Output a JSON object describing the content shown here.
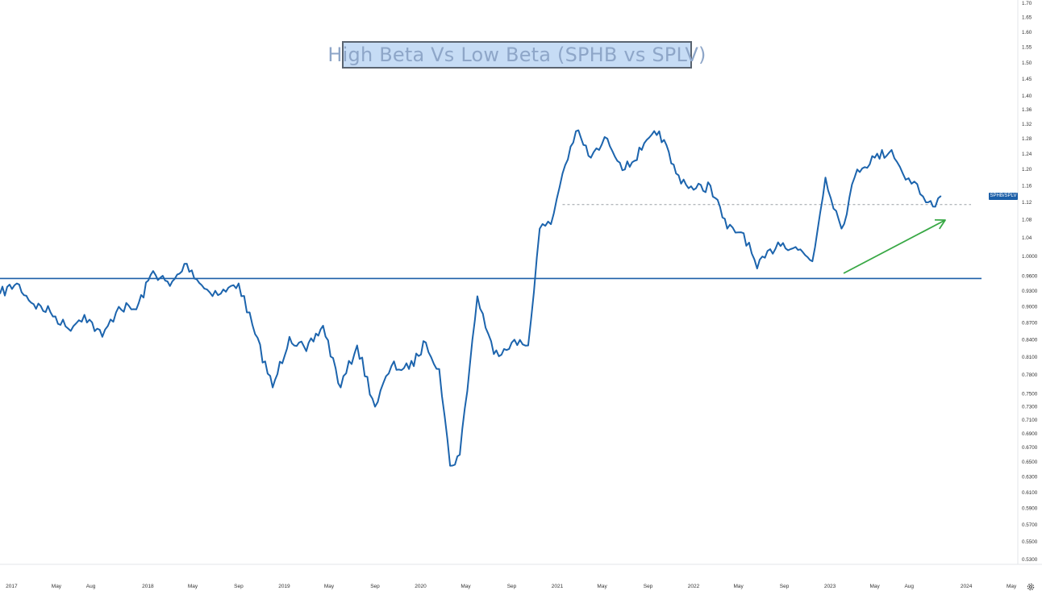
{
  "colors": {
    "line": "#1c64ad",
    "support_line": "#1c5fa8",
    "arrow": "#38a845",
    "dashed_ref": "#9aa0a6",
    "tick_text": "#333333",
    "title_bg": "#c6dcf5",
    "title_text": "#8ea6c8"
  },
  "chart_data": {
    "type": "line",
    "title": "High Beta Vs Low Beta (SPHB vs SPLV)",
    "series": [
      {
        "name": "SPHB/SPLV",
        "x": [
          "2016-12-01",
          "2017-01-15",
          "2017-03-01",
          "2017-04-15",
          "2017-06-01",
          "2017-07-15",
          "2017-09-01",
          "2017-10-15",
          "2017-12-01",
          "2018-01-15",
          "2018-03-01",
          "2018-04-15",
          "2018-06-01",
          "2018-07-15",
          "2018-09-01",
          "2018-10-15",
          "2018-12-01",
          "2019-01-15",
          "2019-03-01",
          "2019-04-15",
          "2019-06-01",
          "2019-07-15",
          "2019-09-01",
          "2019-10-15",
          "2019-12-01",
          "2020-01-15",
          "2020-02-20",
          "2020-03-20",
          "2020-04-15",
          "2020-06-01",
          "2020-07-15",
          "2020-09-01",
          "2020-10-15",
          "2020-11-15",
          "2020-12-15",
          "2021-01-15",
          "2021-02-20",
          "2021-04-01",
          "2021-05-15",
          "2021-07-01",
          "2021-08-15",
          "2021-10-01",
          "2021-11-15",
          "2022-01-01",
          "2022-02-15",
          "2022-04-01",
          "2022-05-15",
          "2022-06-20",
          "2022-08-15",
          "2022-10-01",
          "2022-11-15",
          "2022-12-20",
          "2023-02-01",
          "2023-03-15",
          "2023-05-01",
          "2023-06-15",
          "2023-07-15",
          "2023-08-15",
          "2023-09-15",
          "2023-10-10",
          "2023-10-25"
        ],
        "values": [
          0.925,
          0.945,
          0.905,
          0.89,
          0.86,
          0.885,
          0.845,
          0.9,
          0.895,
          0.97,
          0.94,
          0.985,
          0.935,
          0.925,
          0.945,
          0.85,
          0.76,
          0.845,
          0.82,
          0.865,
          0.76,
          0.83,
          0.73,
          0.795,
          0.79,
          0.835,
          0.79,
          0.645,
          0.66,
          0.92,
          0.815,
          0.835,
          0.83,
          1.06,
          1.07,
          1.19,
          1.3,
          1.23,
          1.28,
          1.2,
          1.25,
          1.3,
          1.19,
          1.15,
          1.16,
          1.06,
          1.05,
          0.975,
          1.03,
          1.02,
          0.99,
          1.18,
          1.06,
          1.2,
          1.23,
          1.25,
          1.19,
          1.17,
          1.12,
          1.11,
          1.135
        ]
      }
    ],
    "y_tick_labels": [
      "1.70",
      "1.65",
      "1.60",
      "1.55",
      "1.50",
      "1.45",
      "1.40",
      "1.36",
      "1.32",
      "1.28",
      "1.24",
      "1.20",
      "1.16",
      "1.12",
      "1.08",
      "1.04",
      "1.0000",
      "0.9600",
      "0.9300",
      "0.9000",
      "0.8700",
      "0.8400",
      "0.8100",
      "0.7800",
      "0.7500",
      "0.7300",
      "0.7100",
      "0.6900",
      "0.6700",
      "0.6500",
      "0.6300",
      "0.6100",
      "0.5900",
      "0.5700",
      "0.5500",
      "0.5300"
    ],
    "x_tick_labels": [
      "2017",
      "May",
      "Aug",
      "2018",
      "May",
      "Sep",
      "2019",
      "May",
      "Sep",
      "2020",
      "May",
      "Sep",
      "2021",
      "May",
      "Sep",
      "2022",
      "May",
      "Sep",
      "2023",
      "May",
      "Aug",
      "2024",
      "May"
    ],
    "ylim": [
      0.5,
      1.75
    ],
    "log_scale": true,
    "grid": false,
    "support_level": 0.955,
    "reference_level": 1.115,
    "legend_tag": "SPHB/SPLV"
  }
}
